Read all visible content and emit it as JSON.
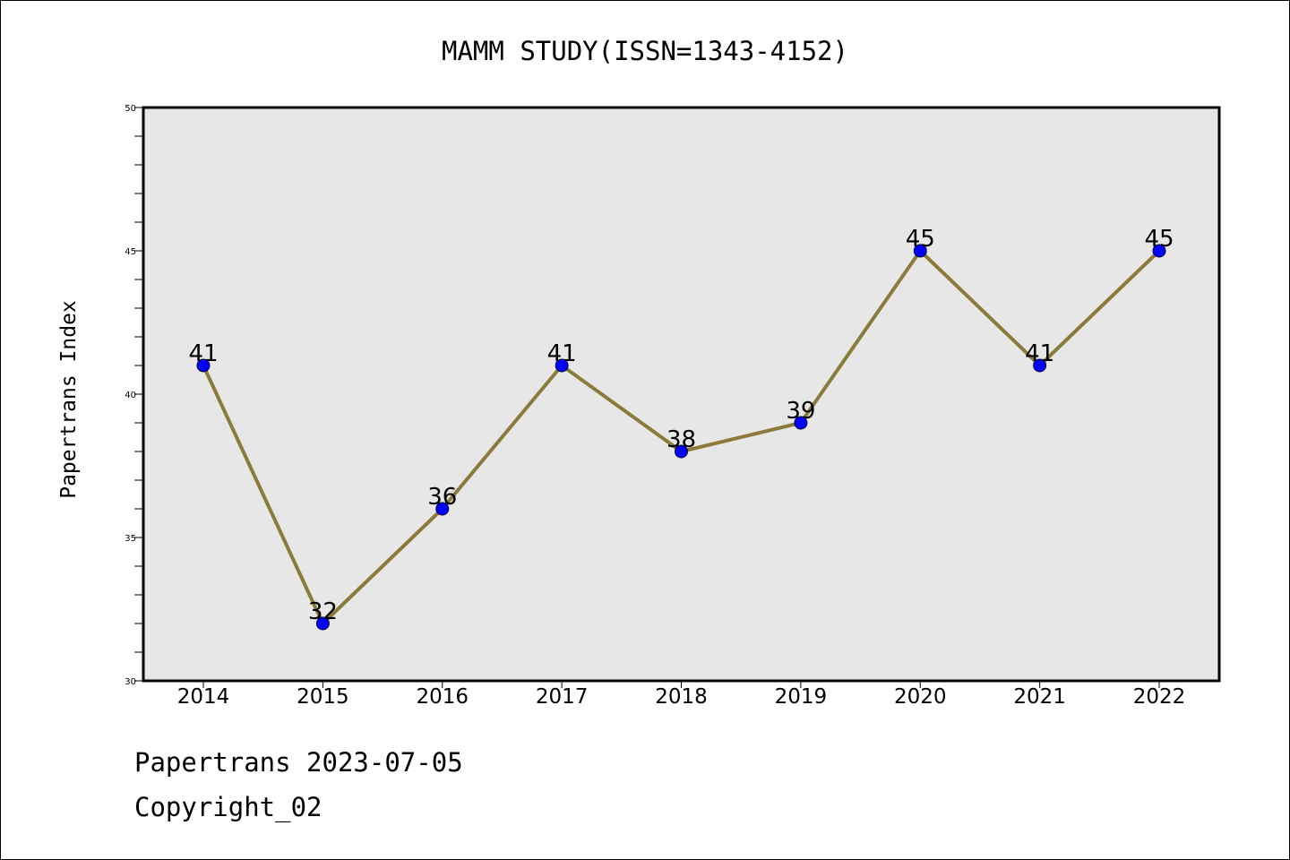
{
  "footer": {
    "line1": "Papertrans 2023-07-05",
    "line2": "Copyright_02"
  },
  "colors": {
    "plot_background": "#e7e7e7",
    "line": "#8b7b3a",
    "marker": "#0000ff",
    "marker_edge": "#000033"
  },
  "chart_data": {
    "type": "line",
    "title": "MAMM STUDY(ISSN=1343-4152)",
    "xlabel": "",
    "ylabel": "Papertrans Index",
    "x": [
      "2014",
      "2015",
      "2016",
      "2017",
      "2018",
      "2019",
      "2020",
      "2021",
      "2022"
    ],
    "series": [
      {
        "values": [
          41,
          32,
          36,
          41,
          38,
          39,
          45,
          41,
          45
        ]
      }
    ],
    "data_labels": [
      "41",
      "32",
      "36",
      "41",
      "38",
      "39",
      "45",
      "41",
      "45"
    ],
    "ylim": [
      30,
      50
    ],
    "yticks": [
      "30",
      "35",
      "40",
      "45",
      "50"
    ],
    "grid": false,
    "legend": "none"
  }
}
